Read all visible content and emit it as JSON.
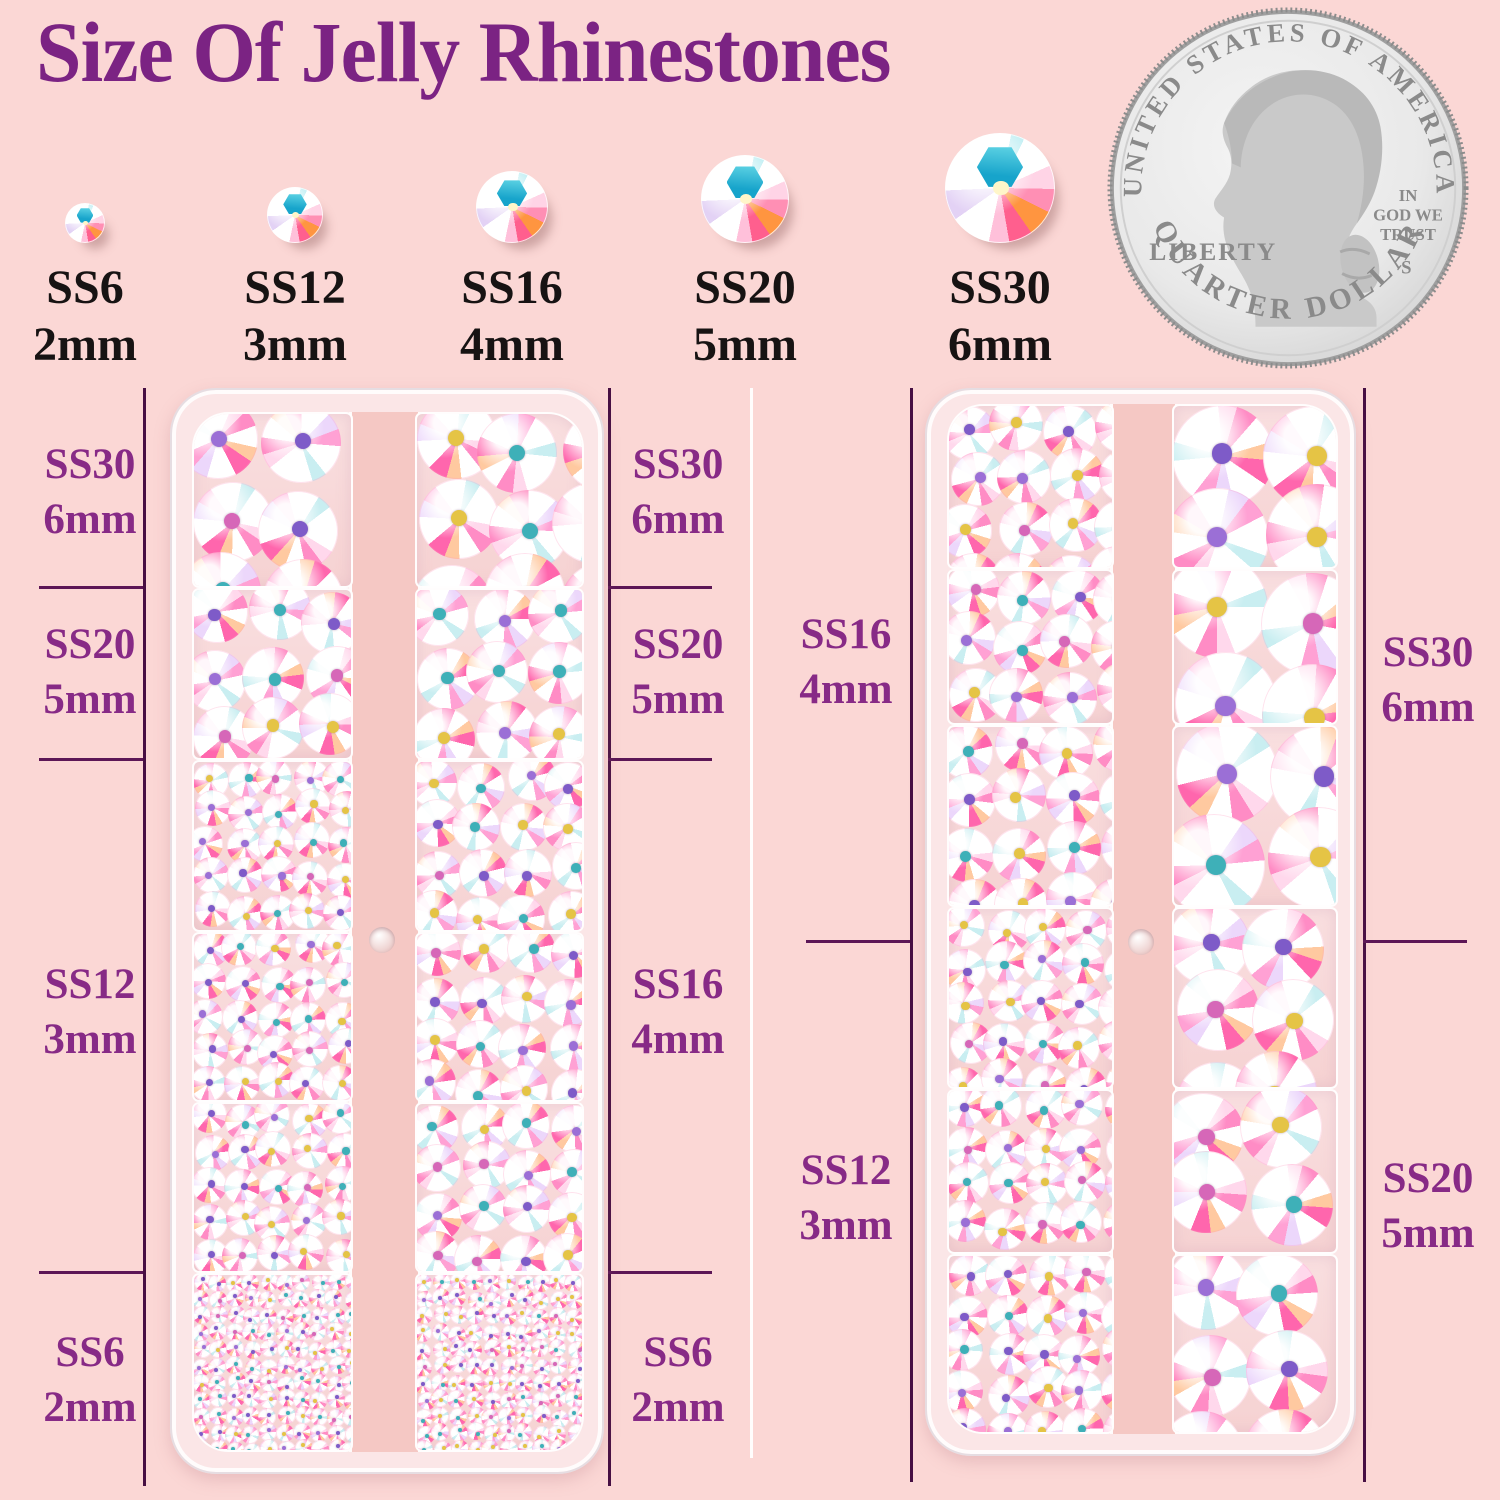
{
  "title": {
    "text": "Size Of Jelly Rhinestones",
    "color": "#7b2383"
  },
  "colors": {
    "background": "#fbd7d5",
    "title_purple": "#7b2383",
    "label_purple": "#872a86",
    "rule_purple": "#470f43",
    "black_text": "#171313",
    "white_divider": "#ffffff",
    "case_strip_pink": "#f5c8c4"
  },
  "size_row": [
    {
      "code": "SS6",
      "size": "2mm"
    },
    {
      "code": "SS12",
      "size": "3mm"
    },
    {
      "code": "SS16",
      "size": "4mm"
    },
    {
      "code": "SS20",
      "size": "5mm"
    },
    {
      "code": "SS30",
      "size": "6mm"
    }
  ],
  "coin": {
    "top": "UNITED STATES OF AMERICA",
    "liberty": "LIBERTY",
    "motto_lines": [
      "IN",
      "GOD WE",
      "TRUST"
    ],
    "mint_mark": "S",
    "bottom": "QUARTER DOLLAR"
  },
  "left_box": {
    "left_labels": [
      {
        "code": "SS30",
        "size": "6mm"
      },
      {
        "code": "SS20",
        "size": "5mm"
      },
      {
        "code": "SS12",
        "size": "3mm"
      },
      {
        "code": "SS6",
        "size": "2mm"
      }
    ],
    "right_labels": [
      {
        "code": "SS30",
        "size": "6mm"
      },
      {
        "code": "SS20",
        "size": "5mm"
      },
      {
        "code": "SS16",
        "size": "4mm"
      },
      {
        "code": "SS6",
        "size": "2mm"
      }
    ],
    "columns": {
      "left": [
        "SS30",
        "SS20",
        "SS12",
        "SS12",
        "SS12",
        "SS6"
      ],
      "right": [
        "SS30",
        "SS20",
        "SS16",
        "SS16",
        "SS16",
        "SS6"
      ]
    }
  },
  "right_box": {
    "left_labels": [
      {
        "code": "SS16",
        "size": "4mm"
      },
      {
        "code": "SS12",
        "size": "3mm"
      }
    ],
    "right_labels": [
      {
        "code": "SS30",
        "size": "6mm"
      },
      {
        "code": "SS20",
        "size": "5mm"
      }
    ],
    "columns": {
      "left": [
        "SS16",
        "SS16",
        "SS16",
        "SS12",
        "SS12",
        "SS12"
      ],
      "right": [
        "SS30",
        "SS30",
        "SS30",
        "SS20",
        "SS20",
        "SS20"
      ]
    }
  }
}
